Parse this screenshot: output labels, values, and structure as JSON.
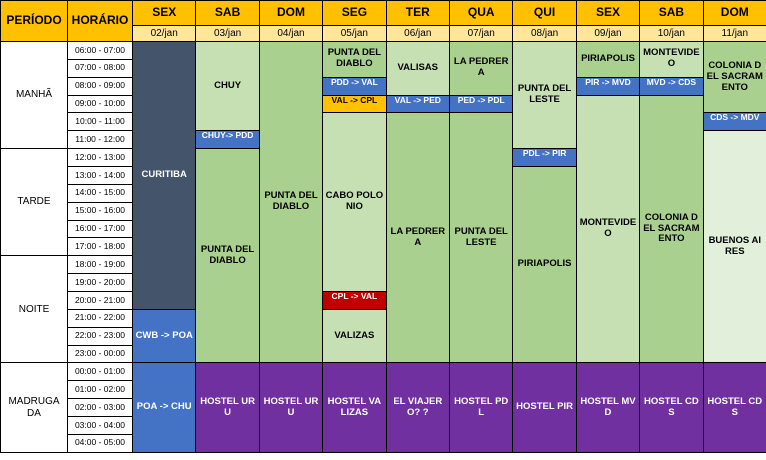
{
  "header": {
    "period_label": "PERÍODO",
    "time_label": "HORÁRIO"
  },
  "days": [
    {
      "name": "SEX",
      "date": "02/jan"
    },
    {
      "name": "SAB",
      "date": "03/jan"
    },
    {
      "name": "DOM",
      "date": "04/jan"
    },
    {
      "name": "SEG",
      "date": "05/jan"
    },
    {
      "name": "TER",
      "date": "06/jan"
    },
    {
      "name": "QUA",
      "date": "07/jan"
    },
    {
      "name": "QUI",
      "date": "08/jan"
    },
    {
      "name": "SEX",
      "date": "09/jan"
    },
    {
      "name": "SAB",
      "date": "10/jan"
    },
    {
      "name": "DOM",
      "date": "11/jan"
    }
  ],
  "periods": [
    {
      "label": "MANHÃ",
      "start": 0,
      "end": 6
    },
    {
      "label": "TARDE",
      "start": 6,
      "end": 12
    },
    {
      "label": "NOITE",
      "start": 12,
      "end": 18
    },
    {
      "label": "MADRUGADA",
      "start": 18,
      "end": 23
    }
  ],
  "hours": [
    "06:00 - 07:00",
    "07:00 - 08:00",
    "08:00 - 09:00",
    "09:00 - 10:00",
    "10:00 - 11:00",
    "11:00 - 12:00",
    "12:00 - 13:00",
    "13:00 - 14:00",
    "14:00 - 15:00",
    "15:00 - 16:00",
    "16:00 - 17:00",
    "17:00 - 18:00",
    "18:00 - 19:00",
    "19:00 - 20:00",
    "20:00 - 21:00",
    "21:00 - 22:00",
    "22:00 - 23:00",
    "23:00 - 00:00",
    "00:00 - 01:00",
    "01:00 - 02:00",
    "02:00 - 03:00",
    "03:00 - 04:00",
    "04:00 - 05:00"
  ],
  "colors": {
    "dark": "#44546A",
    "blue": "#4472C4",
    "green": "#A9D08E",
    "light_green": "#C6E0B4",
    "pale_green": "#E2EFDA",
    "orange": "#FFC000",
    "red": "#C00000",
    "purple": "#7030A0",
    "header": "#FFC000",
    "date_row": "#FFE699"
  },
  "blocks": [
    {
      "day": 0,
      "start": 0,
      "end": 15,
      "text": "CURITIBA",
      "color": "dark",
      "fg": "#FFFFFF"
    },
    {
      "day": 0,
      "start": 15,
      "end": 18,
      "text": "CWB -> POA",
      "color": "blue",
      "fg": "#FFFFFF"
    },
    {
      "day": 0,
      "start": 18,
      "end": 23,
      "text": "POA -> CHU",
      "color": "blue",
      "fg": "#FFFFFF"
    },
    {
      "day": 1,
      "start": 0,
      "end": 5,
      "text": "CHUY",
      "color": "light_green",
      "fg": "#000000"
    },
    {
      "day": 1,
      "start": 5,
      "end": 6,
      "text": "CHUY-> PDD",
      "color": "blue",
      "fg": "#FFFFFF"
    },
    {
      "day": 1,
      "start": 6,
      "end": 18,
      "text": "PUNTA DEL DIABLO",
      "color": "green",
      "fg": "#000000"
    },
    {
      "day": 1,
      "start": 18,
      "end": 23,
      "text": "HOSTEL URU",
      "color": "purple",
      "fg": "#FFFFFF"
    },
    {
      "day": 2,
      "start": 0,
      "end": 18,
      "text": "PUNTA DEL DIABLO",
      "color": "green",
      "fg": "#000000"
    },
    {
      "day": 2,
      "start": 18,
      "end": 23,
      "text": "HOSTEL URU",
      "color": "purple",
      "fg": "#FFFFFF"
    },
    {
      "day": 3,
      "start": 0,
      "end": 2,
      "text": "PUNTA DEL DIABLO",
      "color": "green",
      "fg": "#000000"
    },
    {
      "day": 3,
      "start": 2,
      "end": 3,
      "text": "PDD -> VAL",
      "color": "blue",
      "fg": "#FFFFFF"
    },
    {
      "day": 3,
      "start": 3,
      "end": 4,
      "text": "VAL -> CPL",
      "color": "orange",
      "fg": "#000000"
    },
    {
      "day": 3,
      "start": 4,
      "end": 14,
      "text": "CABO POLONIO",
      "color": "light_green",
      "fg": "#000000"
    },
    {
      "day": 3,
      "start": 14,
      "end": 15,
      "text": "CPL -> VAL",
      "color": "red",
      "fg": "#FFFFFF"
    },
    {
      "day": 3,
      "start": 15,
      "end": 18,
      "text": "VALIZAS",
      "color": "light_green",
      "fg": "#000000"
    },
    {
      "day": 3,
      "start": 18,
      "end": 23,
      "text": "HOSTEL VALIZAS",
      "color": "purple",
      "fg": "#FFFFFF"
    },
    {
      "day": 4,
      "start": 0,
      "end": 3,
      "text": "VALISAS",
      "color": "light_green",
      "fg": "#000000"
    },
    {
      "day": 4,
      "start": 3,
      "end": 4,
      "text": "VAL -> PED",
      "color": "blue",
      "fg": "#FFFFFF"
    },
    {
      "day": 4,
      "start": 4,
      "end": 18,
      "text": "LA PEDRERA",
      "color": "green",
      "fg": "#000000"
    },
    {
      "day": 4,
      "start": 18,
      "end": 23,
      "text": "EL VIAJERO? ?",
      "color": "purple",
      "fg": "#FFFFFF"
    },
    {
      "day": 5,
      "start": 0,
      "end": 3,
      "text": "LA PEDRERA",
      "color": "green",
      "fg": "#000000"
    },
    {
      "day": 5,
      "start": 3,
      "end": 4,
      "text": "PED -> PDL",
      "color": "blue",
      "fg": "#FFFFFF"
    },
    {
      "day": 5,
      "start": 4,
      "end": 18,
      "text": "PUNTA DEL LESTE",
      "color": "green",
      "fg": "#000000"
    },
    {
      "day": 5,
      "start": 18,
      "end": 23,
      "text": "HOSTEL PDL",
      "color": "purple",
      "fg": "#FFFFFF"
    },
    {
      "day": 6,
      "start": 0,
      "end": 6,
      "text": "PUNTA DEL LESTE",
      "color": "light_green",
      "fg": "#000000"
    },
    {
      "day": 6,
      "start": 6,
      "end": 7,
      "text": "PDL -> PIR",
      "color": "blue",
      "fg": "#FFFFFF"
    },
    {
      "day": 6,
      "start": 7,
      "end": 18,
      "text": "PIRIAPOLIS",
      "color": "green",
      "fg": "#000000"
    },
    {
      "day": 6,
      "start": 18,
      "end": 23,
      "text": "HOSTEL PIR",
      "color": "purple",
      "fg": "#FFFFFF"
    },
    {
      "day": 7,
      "start": 0,
      "end": 2,
      "text": "PIRIAPOLIS",
      "color": "green",
      "fg": "#000000"
    },
    {
      "day": 7,
      "start": 2,
      "end": 3,
      "text": "PIR -> MVD",
      "color": "blue",
      "fg": "#FFFFFF"
    },
    {
      "day": 7,
      "start": 3,
      "end": 18,
      "text": "MONTEVIDEO",
      "color": "light_green",
      "fg": "#000000"
    },
    {
      "day": 7,
      "start": 18,
      "end": 23,
      "text": "HOSTEL MVD",
      "color": "purple",
      "fg": "#FFFFFF"
    },
    {
      "day": 8,
      "start": 0,
      "end": 2,
      "text": "MONTEVIDEO",
      "color": "light_green",
      "fg": "#000000"
    },
    {
      "day": 8,
      "start": 2,
      "end": 3,
      "text": "MVD -> CDS",
      "color": "blue",
      "fg": "#FFFFFF"
    },
    {
      "day": 8,
      "start": 3,
      "end": 18,
      "text": "COLONIA DEL SACRAMENTO",
      "color": "green",
      "fg": "#000000"
    },
    {
      "day": 8,
      "start": 18,
      "end": 23,
      "text": "HOSTEL CDS",
      "color": "purple",
      "fg": "#FFFFFF"
    },
    {
      "day": 9,
      "start": 0,
      "end": 4,
      "text": "COLONIA DEL SACRAMENTO",
      "color": "green",
      "fg": "#000000"
    },
    {
      "day": 9,
      "start": 4,
      "end": 5,
      "text": "CDS -> MDV",
      "color": "blue",
      "fg": "#FFFFFF"
    },
    {
      "day": 9,
      "start": 5,
      "end": 18,
      "text": "BUENOS AIRES",
      "color": "pale_green",
      "fg": "#000000"
    },
    {
      "day": 9,
      "start": 18,
      "end": 23,
      "text": "HOSTEL CDS",
      "color": "purple",
      "fg": "#FFFFFF"
    }
  ]
}
